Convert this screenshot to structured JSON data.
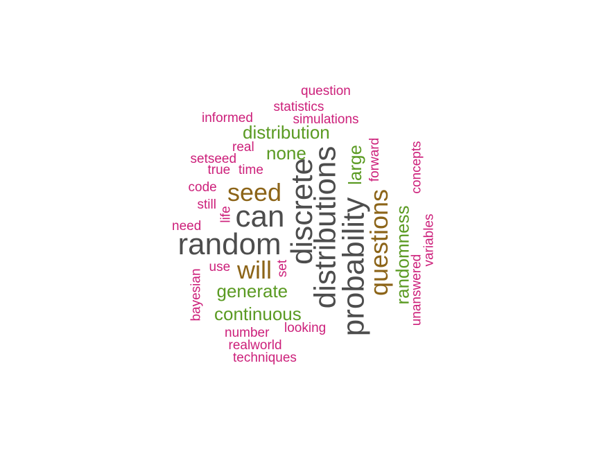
{
  "colors": {
    "gray": "#4d4d4d",
    "brown": "#8c6418",
    "green": "#5a9a22",
    "pink": "#cc1f7a"
  },
  "words": [
    {
      "id": "random",
      "text": "random",
      "color": "gray"
    },
    {
      "id": "can",
      "text": "can",
      "color": "gray"
    },
    {
      "id": "discrete",
      "text": "discrete",
      "color": "gray"
    },
    {
      "id": "distributions",
      "text": "distributions",
      "color": "gray"
    },
    {
      "id": "probability",
      "text": "probability",
      "color": "gray"
    },
    {
      "id": "seed",
      "text": "seed",
      "color": "brown"
    },
    {
      "id": "will",
      "text": "will",
      "color": "brown"
    },
    {
      "id": "questions",
      "text": "questions",
      "color": "brown"
    },
    {
      "id": "distribution",
      "text": "distribution",
      "color": "green"
    },
    {
      "id": "none",
      "text": "none",
      "color": "green"
    },
    {
      "id": "large",
      "text": "large",
      "color": "green"
    },
    {
      "id": "generate",
      "text": "generate",
      "color": "green"
    },
    {
      "id": "continuous",
      "text": "continuous",
      "color": "green"
    },
    {
      "id": "randomness",
      "text": "randomness",
      "color": "green"
    },
    {
      "id": "question",
      "text": "question",
      "color": "pink"
    },
    {
      "id": "statistics",
      "text": "statistics",
      "color": "pink"
    },
    {
      "id": "informed",
      "text": "informed",
      "color": "pink"
    },
    {
      "id": "simulations",
      "text": "simulations",
      "color": "pink"
    },
    {
      "id": "real",
      "text": "real",
      "color": "pink"
    },
    {
      "id": "setseed",
      "text": "setseed",
      "color": "pink"
    },
    {
      "id": "true",
      "text": "true",
      "color": "pink"
    },
    {
      "id": "time",
      "text": "time",
      "color": "pink"
    },
    {
      "id": "forward",
      "text": "forward",
      "color": "pink"
    },
    {
      "id": "concepts",
      "text": "concepts",
      "color": "pink"
    },
    {
      "id": "code",
      "text": "code",
      "color": "pink"
    },
    {
      "id": "still",
      "text": "still",
      "color": "pink"
    },
    {
      "id": "life",
      "text": "life",
      "color": "pink"
    },
    {
      "id": "need",
      "text": "need",
      "color": "pink"
    },
    {
      "id": "variables",
      "text": "variables",
      "color": "pink"
    },
    {
      "id": "use",
      "text": "use",
      "color": "pink"
    },
    {
      "id": "set",
      "text": "set",
      "color": "pink"
    },
    {
      "id": "unanswered",
      "text": "unanswered",
      "color": "pink"
    },
    {
      "id": "bayesian",
      "text": "bayesian",
      "color": "pink"
    },
    {
      "id": "looking",
      "text": "looking",
      "color": "pink"
    },
    {
      "id": "number",
      "text": "number",
      "color": "pink"
    },
    {
      "id": "realworld",
      "text": "realworld",
      "color": "pink"
    },
    {
      "id": "techniques",
      "text": "techniques",
      "color": "pink"
    }
  ]
}
